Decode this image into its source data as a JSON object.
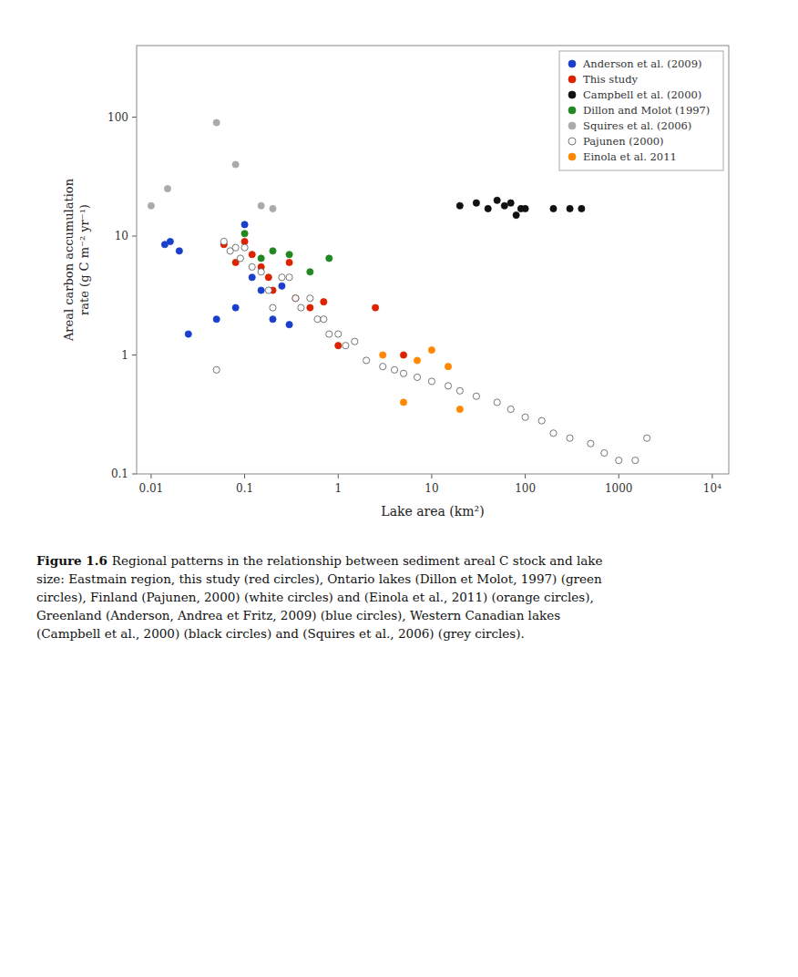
{
  "chart_data": {
    "type": "scatter",
    "title": "Figure 1.6",
    "subtitle": "Regional patterns in the relationship between sediment areal C stock and lake\nsize: Eastmain region, this study (red circles), Ontario lakes (Dillon et Molot, 1997) (green\ncircles), Finland (Pajunen, 2000) (white circles) and (Einola et al., 2011) (orange circles),\nGreenland (Anderson, Andrea et Fritz, 2009) (blue circles), Western Canadian lakes\n(Campbell et al., 2000) (black circles) and (Squires et al., 2006) (grey circles).",
    "xlabel": "Lake area (km²)",
    "ylabel": "Areal carbon accumulation\nrate (g C m⁻² yr⁻¹)",
    "log": true,
    "grid": false,
    "legend": "upper right",
    "xlim": [
      0.007,
      15000
    ],
    "ylim": [
      0.1,
      400
    ],
    "xticks": [
      0.01,
      0.1,
      1,
      10,
      100,
      1000,
      {
        "value": 10000,
        "label": "10⁴"
      }
    ],
    "yticks": [
      0.1,
      1,
      10,
      100
    ],
    "series": [
      {
        "name": "Anderson et al. (2009)",
        "color": "#1a3fcc",
        "x": [
          0.014,
          0.016,
          0.02,
          0.025,
          0.05,
          0.08,
          0.1,
          0.12,
          0.15,
          0.2,
          0.25,
          0.3
        ],
        "values": [
          8.5,
          9.0,
          7.5,
          1.5,
          2.0,
          2.5,
          12.5,
          4.5,
          3.5,
          2.0,
          3.8,
          1.8
        ]
      },
      {
        "name": "This study",
        "color": "#dd2200",
        "x": [
          0.06,
          0.08,
          0.1,
          0.12,
          0.15,
          0.18,
          0.2,
          0.3,
          0.35,
          0.5,
          0.7,
          1.0,
          2.5,
          5.0
        ],
        "values": [
          8.5,
          6.0,
          9.0,
          7.0,
          5.5,
          4.5,
          3.5,
          6.0,
          3.0,
          2.5,
          2.8,
          1.2,
          2.5,
          1.0
        ]
      },
      {
        "name": "Campbell et al. (2000)",
        "color": "#111111",
        "x": [
          20,
          30,
          40,
          50,
          60,
          70,
          80,
          90,
          100,
          200,
          300,
          400
        ],
        "values": [
          18,
          19,
          17,
          20,
          18,
          19,
          15,
          17,
          17,
          17,
          17,
          17
        ]
      },
      {
        "name": "Dillon and Molot (1997)",
        "color": "#228822",
        "x": [
          0.1,
          0.15,
          0.2,
          0.3,
          0.5,
          0.8
        ],
        "values": [
          10.5,
          6.5,
          7.5,
          7.0,
          5.0,
          6.5
        ]
      },
      {
        "name": "Squires et al. (2006)",
        "color": "#aaaaaa",
        "x": [
          0.01,
          0.015,
          0.05,
          0.08,
          0.15,
          0.2
        ],
        "values": [
          18,
          25,
          90,
          40,
          18,
          17
        ]
      },
      {
        "name": "Pajunen (2000)",
        "color": "#ffffff",
        "x": [
          0.05,
          0.06,
          0.07,
          0.08,
          0.09,
          0.1,
          0.12,
          0.15,
          0.18,
          0.2,
          0.25,
          0.3,
          0.35,
          0.4,
          0.5,
          0.6,
          0.7,
          0.8,
          1.0,
          1.2,
          1.5,
          2.0,
          3.0,
          4.0,
          5.0,
          7.0,
          10.0,
          15.0,
          20.0,
          30.0,
          50.0,
          70.0,
          100.0,
          150.0,
          200.0,
          300.0,
          500.0,
          700.0,
          1000.0,
          1500.0,
          2000.0
        ],
        "values": [
          0.75,
          9.0,
          7.5,
          8.0,
          6.5,
          8.0,
          5.5,
          5.0,
          3.5,
          2.5,
          4.5,
          4.5,
          3.0,
          2.5,
          3.0,
          2.0,
          2.0,
          1.5,
          1.5,
          1.2,
          1.3,
          0.9,
          0.8,
          0.75,
          0.7,
          0.65,
          0.6,
          0.55,
          0.5,
          0.45,
          0.4,
          0.35,
          0.3,
          0.28,
          0.22,
          0.2,
          0.18,
          0.15,
          0.13,
          0.13,
          0.2
        ]
      },
      {
        "name": "Einola et al. 2011",
        "color": "#ff8800",
        "x": [
          3.0,
          5.0,
          7.0,
          10.0,
          15.0,
          20.0
        ],
        "values": [
          1.0,
          0.4,
          0.9,
          1.1,
          0.8,
          0.35
        ]
      }
    ]
  }
}
